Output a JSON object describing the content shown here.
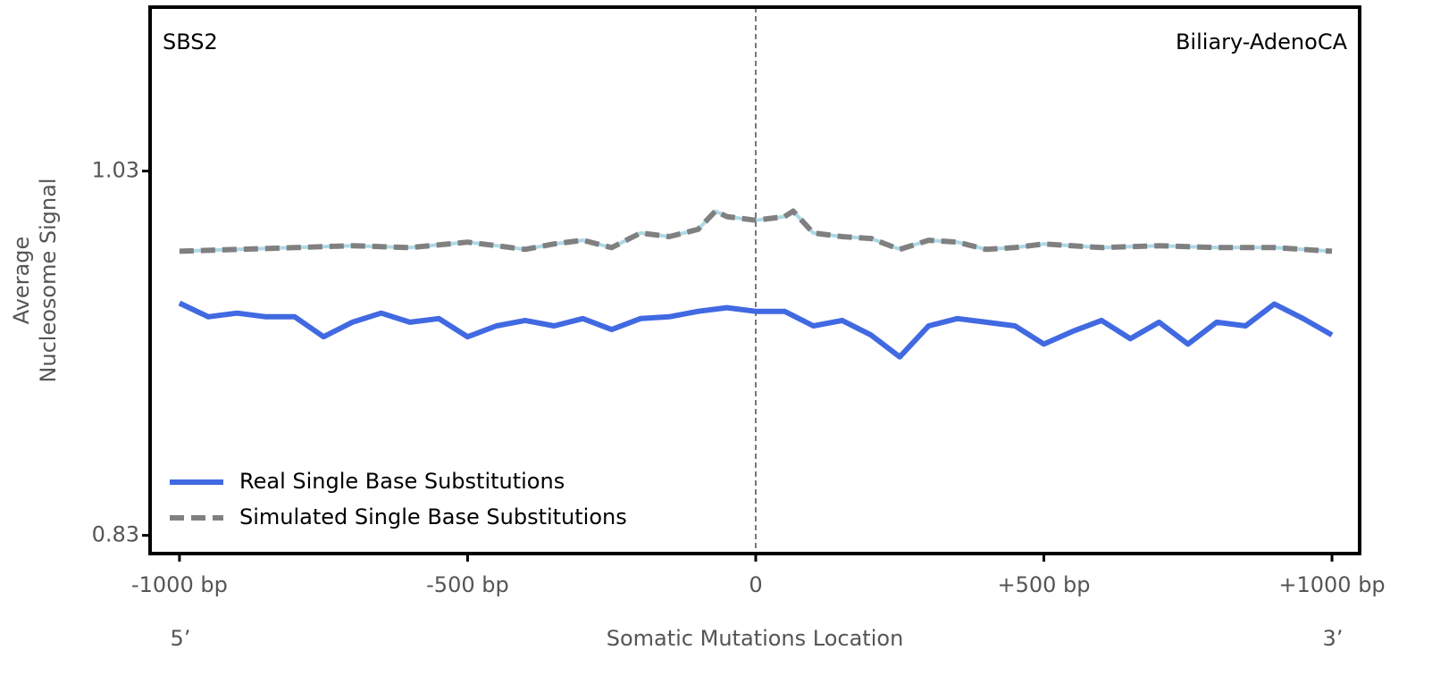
{
  "chart_data": {
    "type": "line",
    "annotation_left": "SBS2",
    "annotation_right": "Biliary-AdenoCA",
    "y_label": [
      "Average",
      "Nucleosome Signal"
    ],
    "x_label": "Somatic Mutations Location",
    "x_end_left": "5’",
    "x_end_right": "3’",
    "xlim": [
      -1051,
      1048
    ],
    "ylim": [
      0.82,
      1.12
    ],
    "xticks": [
      {
        "value": -1000,
        "label": "-1000 bp"
      },
      {
        "value": -500,
        "label": "-500 bp"
      },
      0,
      {
        "value": 500,
        "label": "+500 bp"
      },
      {
        "value": 1000,
        "label": "+1000 bp"
      }
    ],
    "yticks": [
      0.83,
      1.03
    ],
    "vline_x": 0,
    "legend": "lower left",
    "series": [
      {
        "name": "Real Single Base Substitutions",
        "color": "#4169e1",
        "dashed": false,
        "x": [
          -1000,
          -950,
          -900,
          -850,
          -800,
          -750,
          -700,
          -650,
          -600,
          -550,
          -500,
          -450,
          -400,
          -350,
          -300,
          -250,
          -200,
          -150,
          -100,
          -50,
          0,
          50,
          100,
          150,
          200,
          250,
          300,
          350,
          400,
          450,
          500,
          550,
          600,
          650,
          700,
          750,
          800,
          850,
          900,
          950,
          1000
        ],
        "values": [
          0.9575,
          0.95,
          0.952,
          0.95,
          0.95,
          0.939,
          0.947,
          0.952,
          0.947,
          0.949,
          0.939,
          0.945,
          0.948,
          0.945,
          0.949,
          0.943,
          0.949,
          0.95,
          0.953,
          0.955,
          0.953,
          0.953,
          0.945,
          0.948,
          0.94,
          0.928,
          0.945,
          0.949,
          0.947,
          0.945,
          0.935,
          0.942,
          0.948,
          0.938,
          0.947,
          0.935,
          0.947,
          0.945,
          0.957,
          0.949,
          0.94
        ]
      },
      {
        "name": "Simulated Single Base Substitutions",
        "color": "#808080",
        "underlay_color": "#add8e6",
        "dashed": true,
        "x": [
          -1000,
          -900,
          -800,
          -700,
          -600,
          -500,
          -450,
          -400,
          -350,
          -300,
          -250,
          -200,
          -150,
          -100,
          -70,
          -50,
          0,
          50,
          65,
          100,
          150,
          200,
          250,
          300,
          350,
          400,
          450,
          500,
          600,
          700,
          800,
          900,
          1000
        ],
        "values": [
          0.986,
          0.987,
          0.988,
          0.989,
          0.988,
          0.991,
          0.989,
          0.987,
          0.99,
          0.992,
          0.988,
          0.996,
          0.994,
          0.998,
          1.008,
          1.005,
          1.003,
          1.005,
          1.008,
          0.996,
          0.994,
          0.993,
          0.987,
          0.992,
          0.991,
          0.987,
          0.988,
          0.99,
          0.988,
          0.989,
          0.988,
          0.988,
          0.986
        ]
      }
    ]
  }
}
